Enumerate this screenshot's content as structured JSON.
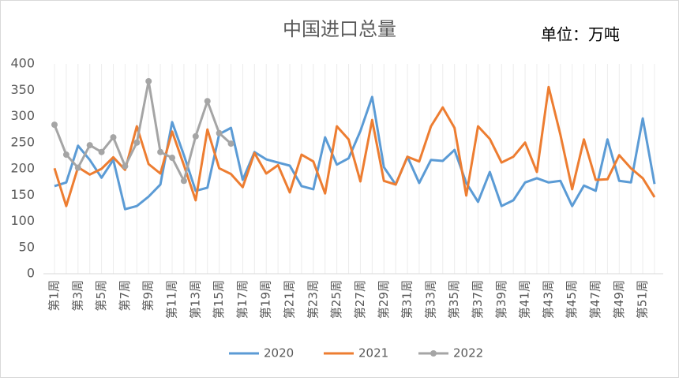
{
  "chart_data": {
    "type": "line",
    "title": "中国进口总量",
    "annotation": "单位：万吨",
    "categories": [
      "第1周",
      null,
      "第3周",
      null,
      "第5周",
      null,
      "第7周",
      null,
      "第9周",
      null,
      "第11周",
      null,
      "第13周",
      null,
      "第15周",
      null,
      "第17周",
      null,
      "第19周",
      null,
      "第21周",
      null,
      "第23周",
      null,
      "第25周",
      null,
      "第27周",
      null,
      "第29周",
      null,
      "第31周",
      null,
      "第33周",
      null,
      "第35周",
      null,
      "第37周",
      null,
      "第39周",
      null,
      "第41周",
      null,
      "第43周",
      null,
      "第45周",
      null,
      "第47周",
      null,
      "第49周",
      null,
      "第51周",
      null
    ],
    "series": [
      {
        "name": "2020",
        "color": "#5b9bd5",
        "markers": false,
        "values": [
          167,
          174,
          244,
          217,
          183,
          217,
          123,
          129,
          147,
          170,
          289,
          226,
          158,
          164,
          266,
          278,
          179,
          232,
          218,
          212,
          206,
          167,
          161,
          260,
          208,
          220,
          272,
          337,
          203,
          170,
          223,
          173,
          217,
          215,
          236,
          173,
          137,
          194,
          129,
          140,
          174,
          182,
          174,
          177,
          129,
          168,
          158,
          256,
          177,
          174,
          296,
          171
        ]
      },
      {
        "name": "2021",
        "color": "#ed7d31",
        "markers": false,
        "values": [
          201,
          129,
          203,
          189,
          200,
          222,
          198,
          281,
          209,
          191,
          271,
          207,
          140,
          275,
          201,
          190,
          165,
          230,
          191,
          207,
          155,
          227,
          214,
          153,
          281,
          256,
          176,
          293,
          177,
          170,
          223,
          214,
          281,
          317,
          278,
          149,
          281,
          257,
          212,
          223,
          250,
          194,
          356,
          265,
          161,
          256,
          179,
          180,
          226,
          201,
          182,
          146
        ]
      },
      {
        "name": "2022",
        "color": "#a5a5a5",
        "markers": true,
        "values": [
          284,
          227,
          202,
          245,
          232,
          260,
          205,
          250,
          367,
          232,
          221,
          177,
          262,
          329,
          268,
          248,
          null,
          null,
          null,
          null,
          null,
          null,
          null,
          null,
          null,
          null,
          null,
          null,
          null,
          null,
          null,
          null,
          null,
          null,
          null,
          null,
          null,
          null,
          null,
          null,
          null,
          null,
          null,
          null,
          null,
          null,
          null,
          null,
          null,
          null,
          null,
          null
        ]
      }
    ],
    "ylim": [
      0,
      400
    ],
    "yticks": [
      0,
      50,
      100,
      150,
      200,
      250,
      300,
      350,
      400
    ],
    "legend": "bottom"
  }
}
